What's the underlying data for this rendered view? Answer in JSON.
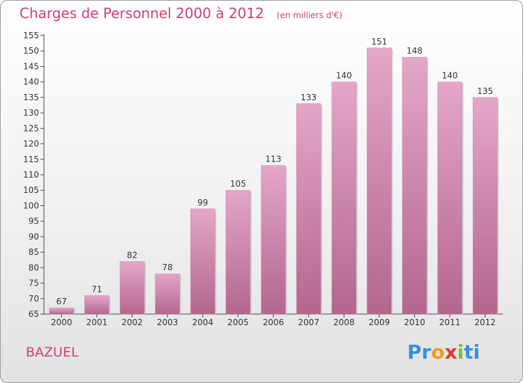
{
  "chart_data": {
    "type": "bar",
    "title": "Charges de Personnel 2000 à 2012",
    "subtitle": "(en milliers d'€)",
    "categories": [
      "2000",
      "2001",
      "2002",
      "2003",
      "2004",
      "2005",
      "2006",
      "2007",
      "2008",
      "2009",
      "2010",
      "2011",
      "2012"
    ],
    "values": [
      67,
      71,
      82,
      78,
      99,
      105,
      113,
      133,
      140,
      151,
      148,
      140,
      135
    ],
    "ylim": [
      65,
      155
    ],
    "yticks": [
      65,
      70,
      75,
      80,
      85,
      90,
      95,
      100,
      105,
      110,
      115,
      120,
      125,
      130,
      135,
      140,
      145,
      150,
      155
    ],
    "grid": false,
    "bar_color": "#d988b6"
  },
  "commune": "BAZUEL",
  "logo": {
    "text": "Proxiti",
    "letters": [
      "Pr",
      "o",
      "x",
      "i",
      "ti"
    ]
  },
  "colors": {
    "title": "#d0407a",
    "accent": "#d0407a"
  }
}
